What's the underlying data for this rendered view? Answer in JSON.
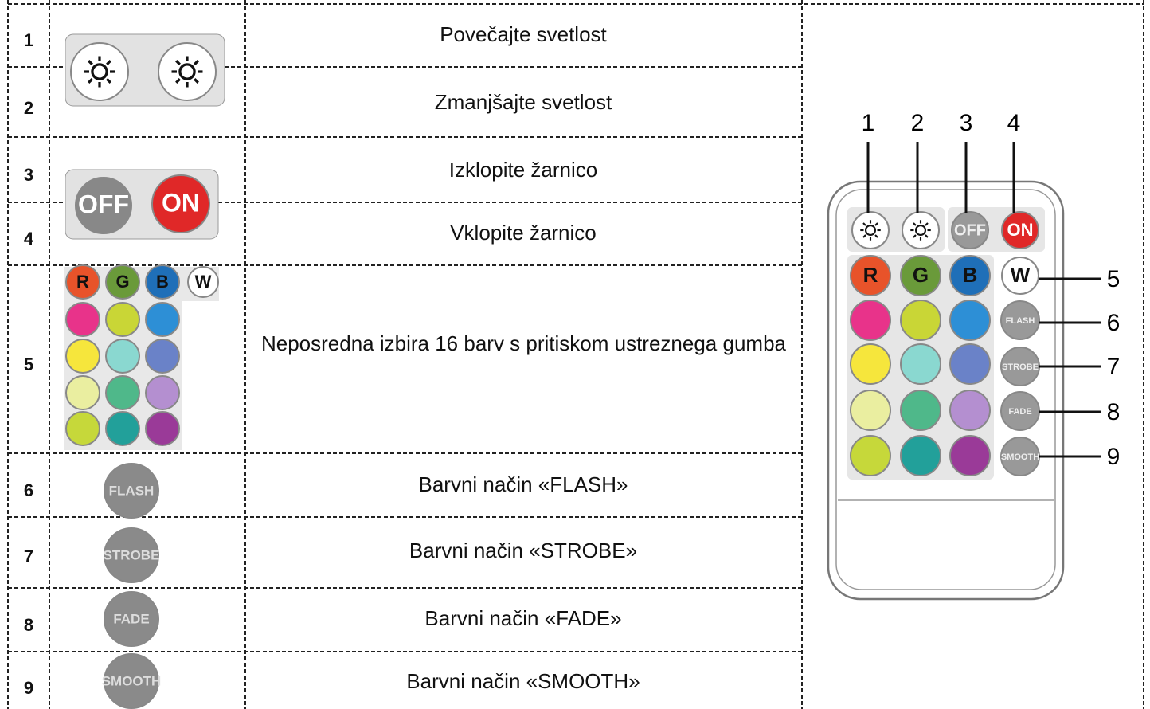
{
  "table": {
    "rows": [
      {
        "number": "1",
        "description": "Povečajte svetlost"
      },
      {
        "number": "2",
        "description": "Zmanjšajte svetlost"
      },
      {
        "number": "3",
        "description": "Izklopite žarnico"
      },
      {
        "number": "4",
        "description": "Vklopite žarnico"
      },
      {
        "number": "5",
        "description": "Neposredna izbira 16 barv s pritiskom ustreznega gumba"
      },
      {
        "number": "6",
        "description": "Barvni način «FLASH»"
      },
      {
        "number": "7",
        "description": "Barvni način «STROBE»"
      },
      {
        "number": "8",
        "description": "Barvni način «FADE»"
      },
      {
        "number": "9",
        "description": "Barvni način «SMOOTH»"
      }
    ]
  },
  "buttons": {
    "off": "OFF",
    "on": "ON",
    "rgbw": [
      "R",
      "G",
      "B",
      "W"
    ],
    "modes": [
      "FLASH",
      "STROBE",
      "FADE",
      "SMOOTH"
    ]
  },
  "remote": {
    "callouts": [
      "1",
      "2",
      "3",
      "4",
      "5",
      "6",
      "7",
      "8",
      "9"
    ]
  }
}
